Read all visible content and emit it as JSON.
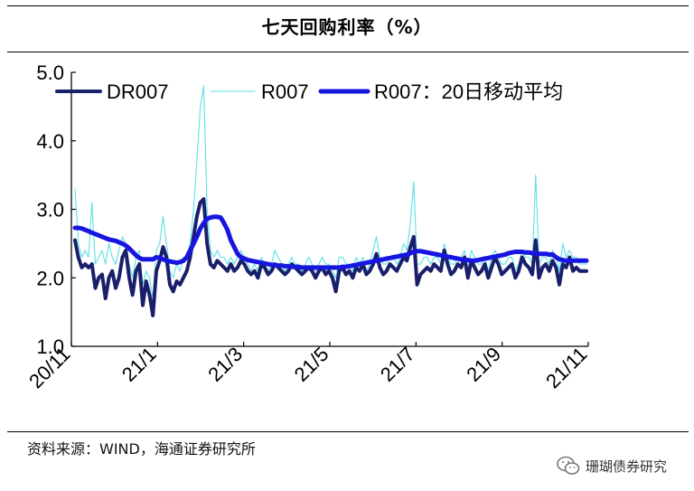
{
  "title": "七天回购利率（%）",
  "source": "资料来源：WIND，海通证券研究所",
  "watermark": "珊瑚债券研究",
  "chart_data": {
    "type": "line",
    "ylim": [
      1.0,
      5.0
    ],
    "yticks": [
      "1.0",
      "2.0",
      "3.0",
      "4.0",
      "5.0"
    ],
    "xticks": [
      "20/11",
      "21/1",
      "21/3",
      "21/5",
      "21/7",
      "21/9",
      "21/11"
    ],
    "grid": false,
    "legend_placement": "top",
    "series": [
      {
        "name": "DR007",
        "color": "#1a1f6b",
        "style": "thick",
        "values": [
          2.55,
          2.3,
          2.15,
          2.2,
          2.15,
          2.2,
          1.85,
          2.0,
          2.05,
          1.7,
          2.0,
          2.1,
          1.85,
          2.0,
          2.3,
          2.4,
          2.0,
          1.75,
          2.1,
          2.2,
          1.6,
          1.95,
          1.75,
          1.45,
          2.1,
          2.25,
          2.45,
          2.3,
          1.9,
          1.8,
          1.95,
          1.9,
          2.0,
          2.1,
          2.3,
          2.6,
          2.9,
          3.1,
          3.15,
          2.5,
          2.2,
          2.15,
          2.25,
          2.2,
          2.15,
          2.1,
          2.2,
          2.1,
          2.15,
          2.25,
          2.2,
          2.1,
          2.05,
          2.1,
          2.0,
          2.2,
          2.15,
          2.05,
          2.1,
          2.2,
          2.15,
          2.1,
          2.05,
          2.1,
          2.2,
          2.15,
          2.1,
          2.05,
          2.1,
          2.15,
          2.1,
          2.0,
          2.1,
          2.15,
          2.05,
          2.1,
          2.0,
          1.8,
          2.1,
          2.15,
          2.05,
          2.1,
          2.0,
          2.15,
          2.1,
          2.2,
          2.05,
          2.1,
          2.2,
          2.35,
          2.15,
          2.05,
          2.1,
          2.2,
          2.15,
          2.1,
          2.2,
          2.3,
          2.25,
          2.45,
          2.6,
          1.9,
          2.05,
          2.1,
          2.15,
          2.1,
          2.2,
          2.15,
          2.1,
          2.4,
          2.2,
          2.05,
          2.1,
          2.2,
          2.15,
          2.3,
          2.0,
          2.25,
          2.15,
          2.05,
          2.1,
          2.2,
          2.0,
          2.15,
          2.3,
          2.2,
          2.05,
          2.1,
          2.15,
          2.2,
          2.0,
          2.1,
          2.3,
          2.2,
          2.15,
          2.05,
          2.55,
          2.0,
          2.15,
          2.2,
          2.1,
          2.25,
          2.15,
          1.9,
          2.2,
          2.15,
          2.3,
          2.1,
          2.15,
          2.1,
          2.1,
          2.1
        ]
      },
      {
        "name": "R007",
        "color": "#5bdfe8",
        "style": "thin",
        "values": [
          3.3,
          2.5,
          2.3,
          2.4,
          2.3,
          3.1,
          2.2,
          2.3,
          2.4,
          2.2,
          2.5,
          2.3,
          2.2,
          2.4,
          2.6,
          2.5,
          2.2,
          2.0,
          2.3,
          2.4,
          1.9,
          2.1,
          2.0,
          1.7,
          2.4,
          2.5,
          2.9,
          2.5,
          2.1,
          2.0,
          2.2,
          2.1,
          2.3,
          2.3,
          2.5,
          3.0,
          3.7,
          4.5,
          4.8,
          3.0,
          2.4,
          2.3,
          2.4,
          2.3,
          2.3,
          2.2,
          2.3,
          2.2,
          2.3,
          2.4,
          2.3,
          2.2,
          2.1,
          2.2,
          2.1,
          2.3,
          2.2,
          2.1,
          2.2,
          2.4,
          2.3,
          2.2,
          2.1,
          2.2,
          2.3,
          2.2,
          2.2,
          2.1,
          2.2,
          2.3,
          2.2,
          2.1,
          2.2,
          2.3,
          2.2,
          2.2,
          2.1,
          2.0,
          2.3,
          2.3,
          2.2,
          2.2,
          2.1,
          2.3,
          2.2,
          2.3,
          2.1,
          2.2,
          2.4,
          2.6,
          2.3,
          2.2,
          2.2,
          2.3,
          2.3,
          2.2,
          2.3,
          2.5,
          2.4,
          2.8,
          3.4,
          2.2,
          2.2,
          2.3,
          2.3,
          2.2,
          2.3,
          2.3,
          2.2,
          2.5,
          2.3,
          2.2,
          2.2,
          2.3,
          2.3,
          2.4,
          2.1,
          2.4,
          2.3,
          2.2,
          2.2,
          2.3,
          2.1,
          2.3,
          2.4,
          2.3,
          2.2,
          2.2,
          2.3,
          2.3,
          2.1,
          2.2,
          2.4,
          2.3,
          2.3,
          2.2,
          3.5,
          2.2,
          2.3,
          2.3,
          2.2,
          2.4,
          2.3,
          2.1,
          2.5,
          2.3,
          2.4,
          2.3,
          2.3,
          2.2,
          2.2,
          2.2
        ]
      },
      {
        "name": "R007：20日移动平均",
        "color": "#1616e0",
        "style": "thickest",
        "values": [
          2.73,
          2.73,
          2.72,
          2.7,
          2.68,
          2.66,
          2.64,
          2.62,
          2.6,
          2.58,
          2.56,
          2.55,
          2.54,
          2.52,
          2.5,
          2.47,
          2.43,
          2.38,
          2.33,
          2.29,
          2.27,
          2.27,
          2.27,
          2.27,
          2.3,
          2.29,
          2.27,
          2.25,
          2.24,
          2.23,
          2.22,
          2.23,
          2.25,
          2.3,
          2.4,
          2.5,
          2.6,
          2.72,
          2.8,
          2.86,
          2.88,
          2.89,
          2.89,
          2.88,
          2.8,
          2.7,
          2.55,
          2.45,
          2.35,
          2.3,
          2.28,
          2.26,
          2.25,
          2.24,
          2.23,
          2.22,
          2.21,
          2.2,
          2.19,
          2.19,
          2.18,
          2.18,
          2.17,
          2.17,
          2.16,
          2.16,
          2.16,
          2.15,
          2.15,
          2.15,
          2.15,
          2.15,
          2.15,
          2.15,
          2.15,
          2.15,
          2.15,
          2.15,
          2.15,
          2.16,
          2.16,
          2.17,
          2.18,
          2.19,
          2.2,
          2.21,
          2.22,
          2.23,
          2.24,
          2.25,
          2.26,
          2.27,
          2.28,
          2.29,
          2.3,
          2.31,
          2.32,
          2.33,
          2.34,
          2.36,
          2.38,
          2.39,
          2.39,
          2.38,
          2.37,
          2.36,
          2.35,
          2.34,
          2.33,
          2.32,
          2.31,
          2.3,
          2.29,
          2.28,
          2.27,
          2.26,
          2.26,
          2.25,
          2.25,
          2.26,
          2.27,
          2.28,
          2.29,
          2.3,
          2.31,
          2.32,
          2.33,
          2.34,
          2.36,
          2.37,
          2.38,
          2.38,
          2.38,
          2.37,
          2.37,
          2.36,
          2.36,
          2.35,
          2.35,
          2.35,
          2.34,
          2.34,
          2.3,
          2.27,
          2.26,
          2.25,
          2.25,
          2.25,
          2.25,
          2.25,
          2.25,
          2.25
        ]
      }
    ]
  }
}
